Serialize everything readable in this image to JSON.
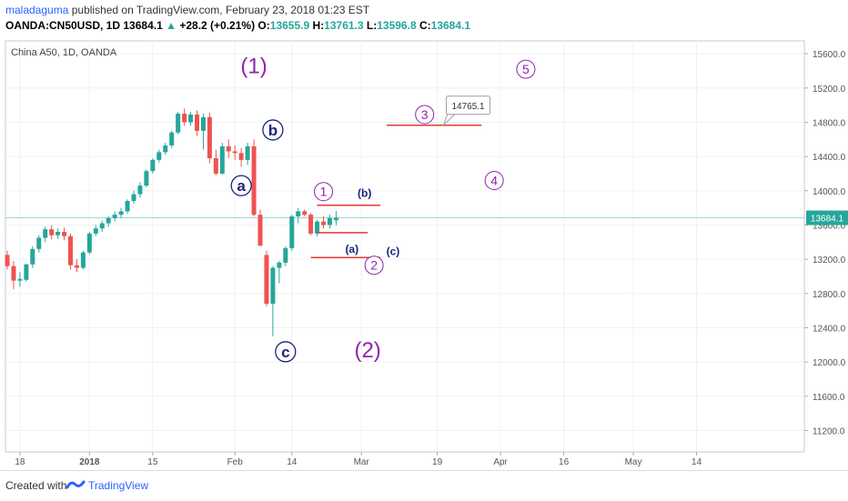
{
  "header": {
    "author": "maladaguma",
    "published_text": "published on TradingView.com, February 23, 2018 01:23 EST",
    "symbol": "OANDA:CN50USD, 1D",
    "last": "13684.1",
    "change": "+28.2 (+0.21%)",
    "o_label": "O:",
    "o_value": "13655.9",
    "h_label": "H:",
    "h_value": "13761.3",
    "l_label": "L:",
    "l_value": "13596.8",
    "c_label": "C:",
    "c_value": "13684.1"
  },
  "footer": {
    "created": "Created with",
    "brand": "TradingView"
  },
  "colors": {
    "up": "#26a69a",
    "down": "#ef5350",
    "red_line": "#e53935",
    "purple": "#8e24aa",
    "navy": "#1a237e",
    "price_tag": "#26a69a"
  },
  "chart_data": {
    "type": "candlestick",
    "legend": "China A50, 1D, OANDA",
    "ylim": [
      10950,
      15750
    ],
    "yticks": [
      11200,
      11600,
      12000,
      12400,
      12800,
      13200,
      13600,
      14000,
      14400,
      14800,
      15200,
      15600
    ],
    "xticks": [
      {
        "label": "18",
        "i": 2
      },
      {
        "label": "2018",
        "i": 13
      },
      {
        "label": "15",
        "i": 23
      },
      {
        "label": "Feb",
        "i": 36
      },
      {
        "label": "14",
        "i": 45
      },
      {
        "label": "Mar",
        "i": 56
      },
      {
        "label": "19",
        "i": 68
      },
      {
        "label": "Apr",
        "i": 78
      },
      {
        "label": "16",
        "i": 88
      },
      {
        "label": "May",
        "i": 99
      },
      {
        "label": "14",
        "i": 109
      }
    ],
    "last_price": "13684.1",
    "candles": [
      {
        "o": 13250,
        "h": 13300,
        "l": 13080,
        "c": 13120
      },
      {
        "o": 13120,
        "h": 13180,
        "l": 12850,
        "c": 12950
      },
      {
        "o": 12950,
        "h": 13050,
        "l": 12880,
        "c": 12970
      },
      {
        "o": 12960,
        "h": 13150,
        "l": 12940,
        "c": 13140
      },
      {
        "o": 13140,
        "h": 13350,
        "l": 13100,
        "c": 13320
      },
      {
        "o": 13320,
        "h": 13480,
        "l": 13280,
        "c": 13450
      },
      {
        "o": 13450,
        "h": 13580,
        "l": 13400,
        "c": 13550
      },
      {
        "o": 13550,
        "h": 13600,
        "l": 13430,
        "c": 13480
      },
      {
        "o": 13480,
        "h": 13560,
        "l": 13440,
        "c": 13520
      },
      {
        "o": 13520,
        "h": 13570,
        "l": 13420,
        "c": 13470
      },
      {
        "o": 13470,
        "h": 13500,
        "l": 13080,
        "c": 13130
      },
      {
        "o": 13130,
        "h": 13200,
        "l": 13050,
        "c": 13100
      },
      {
        "o": 13100,
        "h": 13300,
        "l": 13080,
        "c": 13280
      },
      {
        "o": 13280,
        "h": 13520,
        "l": 13260,
        "c": 13500
      },
      {
        "o": 13500,
        "h": 13600,
        "l": 13470,
        "c": 13560
      },
      {
        "o": 13560,
        "h": 13650,
        "l": 13520,
        "c": 13620
      },
      {
        "o": 13620,
        "h": 13700,
        "l": 13580,
        "c": 13680
      },
      {
        "o": 13680,
        "h": 13760,
        "l": 13640,
        "c": 13720
      },
      {
        "o": 13720,
        "h": 13800,
        "l": 13680,
        "c": 13760
      },
      {
        "o": 13760,
        "h": 13900,
        "l": 13730,
        "c": 13880
      },
      {
        "o": 13880,
        "h": 14000,
        "l": 13850,
        "c": 13960
      },
      {
        "o": 13960,
        "h": 14100,
        "l": 13920,
        "c": 14060
      },
      {
        "o": 14060,
        "h": 14250,
        "l": 14040,
        "c": 14230
      },
      {
        "o": 14230,
        "h": 14380,
        "l": 14200,
        "c": 14360
      },
      {
        "o": 14360,
        "h": 14480,
        "l": 14330,
        "c": 14450
      },
      {
        "o": 14450,
        "h": 14560,
        "l": 14420,
        "c": 14530
      },
      {
        "o": 14530,
        "h": 14700,
        "l": 14500,
        "c": 14680
      },
      {
        "o": 14680,
        "h": 14920,
        "l": 14660,
        "c": 14900
      },
      {
        "o": 14900,
        "h": 14960,
        "l": 14760,
        "c": 14800
      },
      {
        "o": 14800,
        "h": 14920,
        "l": 14760,
        "c": 14890
      },
      {
        "o": 14890,
        "h": 14940,
        "l": 14640,
        "c": 14700
      },
      {
        "o": 14700,
        "h": 14900,
        "l": 14480,
        "c": 14860
      },
      {
        "o": 14860,
        "h": 14910,
        "l": 14320,
        "c": 14380
      },
      {
        "o": 14380,
        "h": 14480,
        "l": 14180,
        "c": 14200
      },
      {
        "o": 14200,
        "h": 14560,
        "l": 14190,
        "c": 14520
      },
      {
        "o": 14520,
        "h": 14600,
        "l": 14380,
        "c": 14460
      },
      {
        "o": 14460,
        "h": 14530,
        "l": 14360,
        "c": 14440
      },
      {
        "o": 14440,
        "h": 14500,
        "l": 14280,
        "c": 14360
      },
      {
        "o": 14360,
        "h": 14560,
        "l": 14300,
        "c": 14520
      },
      {
        "o": 14520,
        "h": 14600,
        "l": 13700,
        "c": 13720
      },
      {
        "o": 13720,
        "h": 13780,
        "l": 13350,
        "c": 13360
      },
      {
        "o": 13250,
        "h": 13300,
        "l": 12650,
        "c": 12680
      },
      {
        "o": 12680,
        "h": 13120,
        "l": 12300,
        "c": 13100
      },
      {
        "o": 13100,
        "h": 13180,
        "l": 12920,
        "c": 13160
      },
      {
        "o": 13160,
        "h": 13350,
        "l": 13120,
        "c": 13330
      },
      {
        "o": 13330,
        "h": 13720,
        "l": 13300,
        "c": 13700
      },
      {
        "o": 13700,
        "h": 13800,
        "l": 13620,
        "c": 13760
      },
      {
        "o": 13760,
        "h": 13780,
        "l": 13700,
        "c": 13720
      },
      {
        "o": 13720,
        "h": 13740,
        "l": 13480,
        "c": 13500
      },
      {
        "o": 13500,
        "h": 13660,
        "l": 13470,
        "c": 13640
      },
      {
        "o": 13640,
        "h": 13700,
        "l": 13560,
        "c": 13600
      },
      {
        "o": 13600,
        "h": 13720,
        "l": 13560,
        "c": 13680
      },
      {
        "o": 13655.9,
        "h": 13761.3,
        "l": 13596.8,
        "c": 13684.1
      }
    ],
    "hlines": [
      {
        "name": "wave-3-target-line",
        "y": 14765,
        "i0": 60,
        "i1": 75
      },
      {
        "name": "wave-b-line",
        "y": 13830,
        "i0": 49,
        "i1": 59
      },
      {
        "name": "wave-a-line",
        "y": 13510,
        "i0": 49,
        "i1": 57
      },
      {
        "name": "wave-c-line",
        "y": 13220,
        "i0": 48,
        "i1": 59
      }
    ],
    "callout": {
      "text": "14765.1",
      "y": 14765,
      "i": 69
    },
    "annotations": [
      {
        "name": "wave-1-major-label",
        "text": "(1)",
        "i": 39,
        "y": 15460,
        "style": "paren-big",
        "color": "purple"
      },
      {
        "name": "wave-2-major-label",
        "text": "(2)",
        "i": 57,
        "y": 12140,
        "style": "paren-big",
        "color": "purple"
      },
      {
        "name": "wave-b-circle-label",
        "text": "b",
        "i": 42,
        "y": 14710,
        "style": "circle-bold",
        "color": "navy"
      },
      {
        "name": "wave-a-circle-label",
        "text": "a",
        "i": 37,
        "y": 14060,
        "style": "circle-bold",
        "color": "navy"
      },
      {
        "name": "wave-c-circle-label",
        "text": "c",
        "i": 44,
        "y": 12120,
        "style": "circle-bold",
        "color": "navy"
      },
      {
        "name": "wave-1-minor-label",
        "text": "1",
        "i": 50,
        "y": 13990,
        "style": "circle",
        "color": "purple"
      },
      {
        "name": "wave-2-minor-label",
        "text": "2",
        "i": 58,
        "y": 13130,
        "style": "circle",
        "color": "purple"
      },
      {
        "name": "wave-3-minor-label",
        "text": "3",
        "i": 66,
        "y": 14890,
        "style": "circle",
        "color": "purple"
      },
      {
        "name": "wave-4-minor-label",
        "text": "4",
        "i": 77,
        "y": 14120,
        "style": "circle",
        "color": "purple"
      },
      {
        "name": "wave-5-minor-label",
        "text": "5",
        "i": 82,
        "y": 15420,
        "style": "circle",
        "color": "purple"
      },
      {
        "name": "wave-b-paren-label",
        "text": "(b)",
        "i": 56.5,
        "y": 13970,
        "style": "paren",
        "color": "navy"
      },
      {
        "name": "wave-a-paren-label",
        "text": "(a)",
        "i": 54.5,
        "y": 13320,
        "style": "paren",
        "color": "navy"
      },
      {
        "name": "wave-c-paren-label",
        "text": "(c)",
        "i": 61,
        "y": 13290,
        "style": "paren",
        "color": "navy"
      }
    ]
  }
}
